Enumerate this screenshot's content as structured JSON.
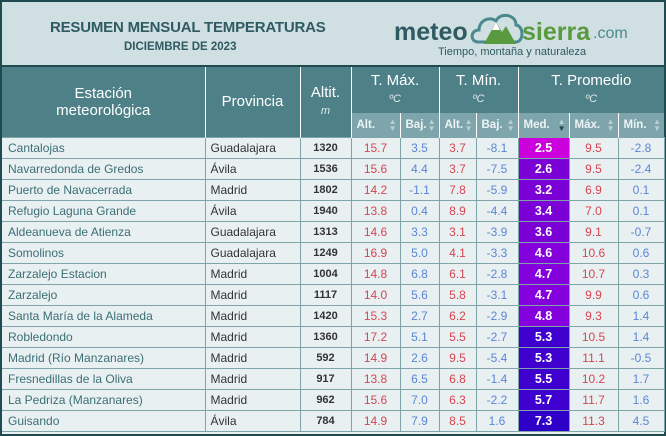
{
  "header": {
    "title": "RESUMEN MENSUAL TEMPERATURAS",
    "subtitle": "DICIEMBRE DE 2023",
    "logo": {
      "left": "meteo",
      "right": "sierra",
      "domain": ".com",
      "tagline": "Tiempo, montaña y naturaleza"
    }
  },
  "columns": {
    "station": "Estación meteorológica",
    "province": "Provincia",
    "alt": "Altit.",
    "alt_unit": "m",
    "tmax": "T. Máx.",
    "tmin": "T. Mín.",
    "tavg": "T. Promedio",
    "unit": "ºC",
    "sub": [
      "Alt.",
      "Baj.",
      "Alt.",
      "Baj.",
      "Med.",
      "Máx.",
      "Mín."
    ]
  },
  "colors": {
    "med_scale": [
      "#cc00dd",
      "#7a00d6",
      "#8400dd",
      "#3f00cf",
      "#2e00c8"
    ]
  },
  "rows": [
    [
      "Cantalojas",
      "Guadalajara",
      "1320",
      "15.7",
      "3.5",
      "3.7",
      "-8.1",
      "2.5",
      "9.5",
      "-2.8"
    ],
    [
      "Navarredonda de Gredos",
      "Ávila",
      "1536",
      "15.6",
      "4.4",
      "3.7",
      "-7.5",
      "2.6",
      "9.5",
      "-2.4"
    ],
    [
      "Puerto de Navacerrada",
      "Madrid",
      "1802",
      "14.2",
      "-1.1",
      "7.8",
      "-5.9",
      "3.2",
      "6.9",
      "0.1"
    ],
    [
      "Refugio Laguna Grande",
      "Ávila",
      "1940",
      "13.8",
      "0.4",
      "8.9",
      "-4.4",
      "3.4",
      "7.0",
      "0.1"
    ],
    [
      "Aldeanueva de Atienza",
      "Guadalajara",
      "1313",
      "14.6",
      "3.3",
      "3.1",
      "-3.9",
      "3.6",
      "9.1",
      "-0.7"
    ],
    [
      "Somolinos",
      "Guadalajara",
      "1249",
      "16.9",
      "5.0",
      "4.1",
      "-3.3",
      "4.6",
      "10.6",
      "0.6"
    ],
    [
      "Zarzalejo Estacion",
      "Madrid",
      "1004",
      "14.8",
      "6.8",
      "6.1",
      "-2.8",
      "4.7",
      "10.7",
      "0.3"
    ],
    [
      "Zarzalejo",
      "Madrid",
      "1117",
      "14.0",
      "5.6",
      "5.8",
      "-3.1",
      "4.7",
      "9.9",
      "0.6"
    ],
    [
      "Santa María de la Alameda",
      "Madrid",
      "1420",
      "15.3",
      "2.7",
      "6.2",
      "-2.9",
      "4.8",
      "9.3",
      "1.4"
    ],
    [
      "Robledondo",
      "Madrid",
      "1360",
      "17.2",
      "5.1",
      "5.5",
      "-2.7",
      "5.3",
      "10.5",
      "1.4"
    ],
    [
      "Madrid (Río Manzanares)",
      "Madrid",
      "592",
      "14.9",
      "2.6",
      "9.5",
      "-5.4",
      "5.3",
      "11.1",
      "-0.5"
    ],
    [
      "Fresnedillas de la Oliva",
      "Madrid",
      "917",
      "13.8",
      "6.5",
      "6.8",
      "-1.4",
      "5.5",
      "10.2",
      "1.7"
    ],
    [
      "La Pedriza (Manzanares)",
      "Madrid",
      "962",
      "15.6",
      "7.0",
      "6.3",
      "-2.2",
      "5.7",
      "11.7",
      "1.6"
    ],
    [
      "Guisando",
      "Ávila",
      "784",
      "14.9",
      "7.9",
      "8.5",
      "1.6",
      "7.3",
      "11.3",
      "4.5"
    ]
  ]
}
